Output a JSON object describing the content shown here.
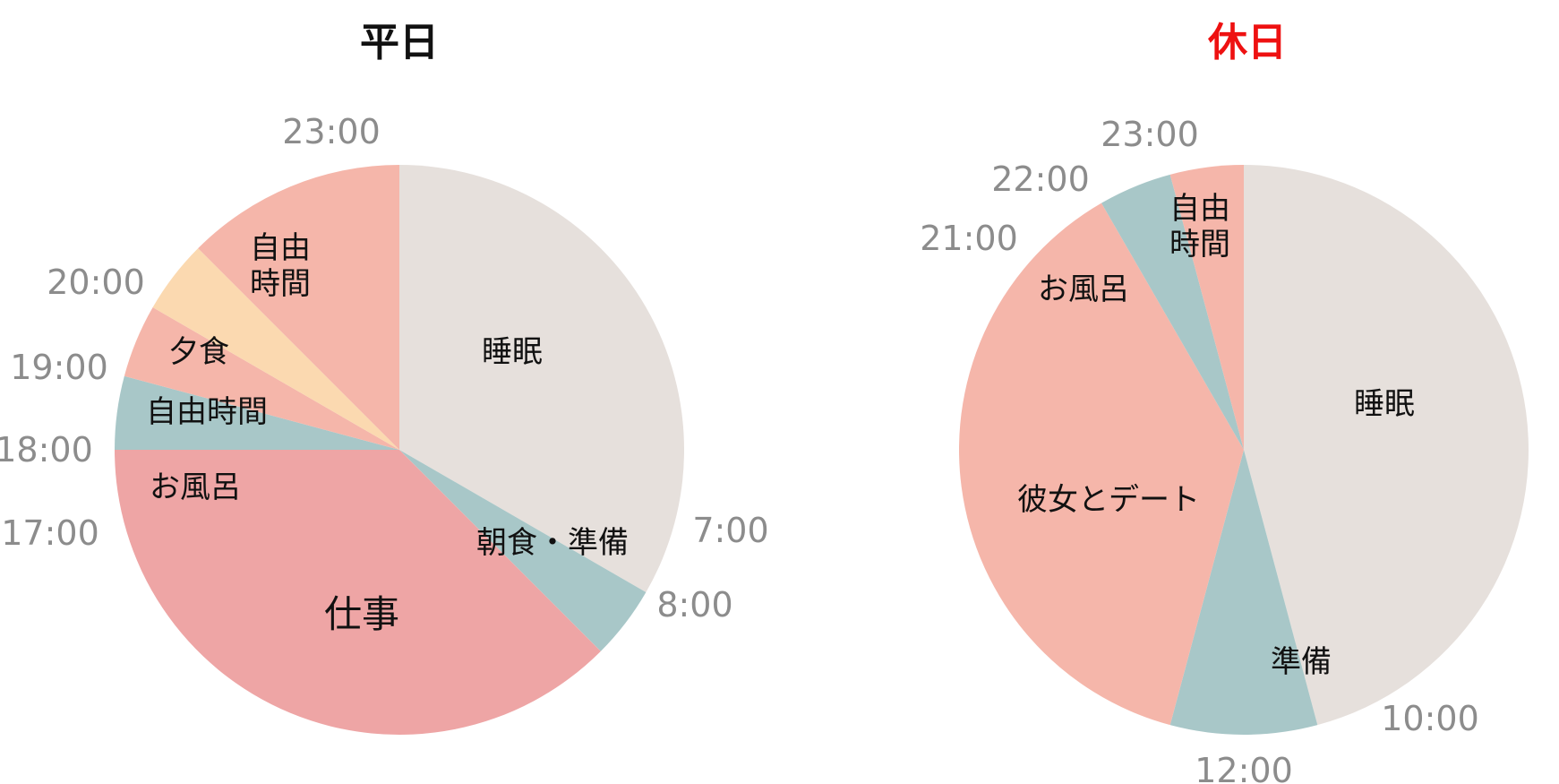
{
  "colors": {
    "sleep": "#e6e0dc",
    "morning": "#a8c7c8",
    "work": "#eea5a5",
    "bath": "#a8c7c8",
    "free": "#f5b6aa",
    "dinner": "#fbd9b0",
    "date": "#f5b6aa",
    "prep": "#a8c7c8",
    "weekday_title": "#111111",
    "holiday_title": "#ee1111"
  },
  "chart_data": [
    {
      "type": "pie",
      "title": "平日",
      "start_hour": 23,
      "slices": [
        {
          "label": "睡眠",
          "start": 23,
          "end": 7,
          "hours": 8,
          "color_key": "sleep"
        },
        {
          "label": "朝食・準備",
          "start": 7,
          "end": 8,
          "hours": 1,
          "color_key": "morning"
        },
        {
          "label": "仕事",
          "start": 8,
          "end": 17,
          "hours": 9,
          "color_key": "work"
        },
        {
          "label": "お風呂",
          "start": 17,
          "end": 18,
          "hours": 1,
          "color_key": "bath"
        },
        {
          "label": "自由時間",
          "start": 18,
          "end": 19,
          "hours": 1,
          "color_key": "free"
        },
        {
          "label": "夕食",
          "start": 19,
          "end": 20,
          "hours": 1,
          "color_key": "dinner"
        },
        {
          "label": "自由\n時間",
          "start": 20,
          "end": 23,
          "hours": 3,
          "color_key": "free"
        }
      ],
      "time_labels": [
        "23:00",
        "7:00",
        "8:00",
        "17:00",
        "18:00",
        "19:00",
        "20:00"
      ]
    },
    {
      "type": "pie",
      "title": "休日",
      "start_hour": 23,
      "slices": [
        {
          "label": "睡眠",
          "start": 23,
          "end": 10,
          "hours": 11,
          "color_key": "sleep"
        },
        {
          "label": "準備",
          "start": 10,
          "end": 12,
          "hours": 2,
          "color_key": "prep"
        },
        {
          "label": "彼女とデート",
          "start": 12,
          "end": 21,
          "hours": 9,
          "color_key": "date"
        },
        {
          "label": "お風呂",
          "start": 21,
          "end": 22,
          "hours": 1,
          "color_key": "bath"
        },
        {
          "label": "自由\n時間",
          "start": 22,
          "end": 23,
          "hours": 1,
          "color_key": "free"
        }
      ],
      "time_labels": [
        "23:00",
        "10:00",
        "12:00",
        "21:00",
        "22:00"
      ]
    }
  ]
}
